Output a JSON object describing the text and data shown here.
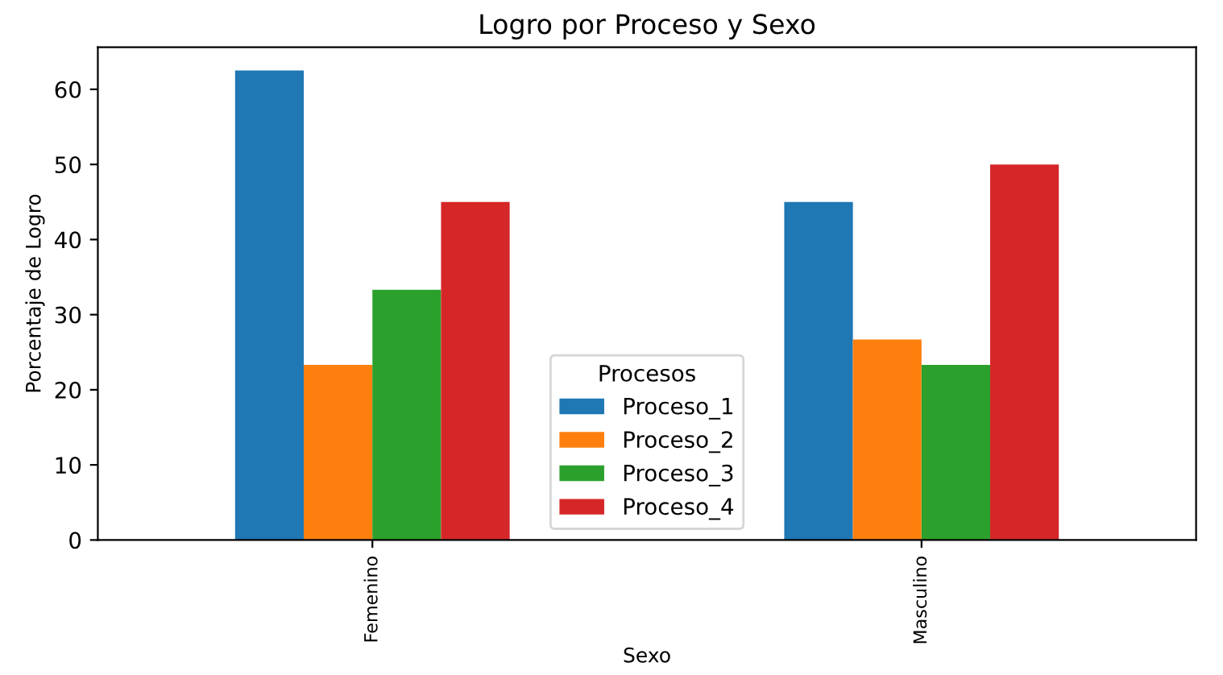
{
  "chart_data": {
    "type": "bar",
    "title": "Logro por Proceso y Sexo",
    "xlabel": "Sexo",
    "ylabel": "Porcentaje de Logro",
    "legend_title": "Procesos",
    "categories": [
      "Femenino",
      "Masculino"
    ],
    "series": [
      {
        "name": "Proceso_1",
        "color": "#1f77b4",
        "values": [
          62.5,
          45
        ]
      },
      {
        "name": "Proceso_2",
        "color": "#ff7f0e",
        "values": [
          23.3,
          26.7
        ]
      },
      {
        "name": "Proceso_3",
        "color": "#2ca02c",
        "values": [
          33.3,
          23.3
        ]
      },
      {
        "name": "Proceso_4",
        "color": "#d62728",
        "values": [
          45,
          50
        ]
      }
    ],
    "ylim": [
      0,
      65.6
    ],
    "yticks": [
      0,
      10,
      20,
      30,
      40,
      50,
      60
    ],
    "grid": false,
    "legend": "bottom"
  }
}
